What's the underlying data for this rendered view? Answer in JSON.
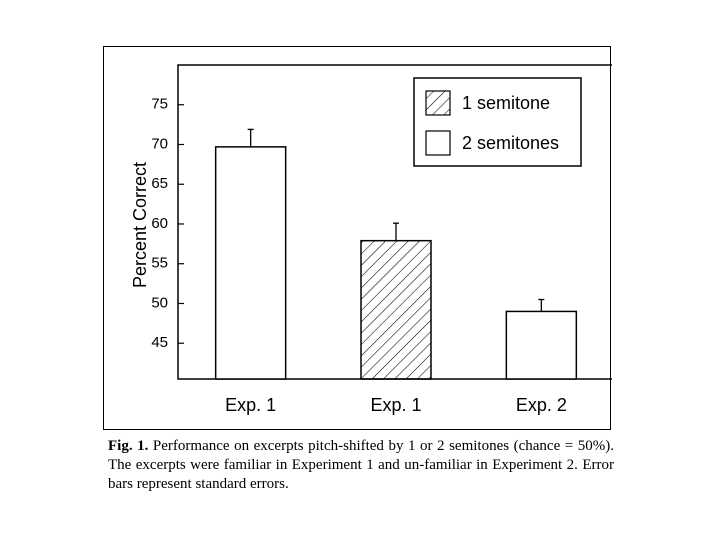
{
  "chart_data": {
    "type": "bar",
    "title": "",
    "xlabel": "",
    "ylabel": "Percent Correct",
    "ylim": [
      40.5,
      80
    ],
    "yticks": [
      45,
      50,
      55,
      60,
      65,
      70,
      75
    ],
    "grid": false,
    "legend_position": "top-right",
    "categories": [
      "Exp. 1",
      "Exp. 1",
      "Exp. 2"
    ],
    "bars": [
      {
        "category": "Exp. 1",
        "series": "2 semitones",
        "value": 69.7,
        "error": 2.2
      },
      {
        "category": "Exp. 1",
        "series": "1 semitone",
        "value": 57.9,
        "error": 2.2
      },
      {
        "category": "Exp. 2",
        "series": "2 semitones",
        "value": 49.0,
        "error": 1.5
      }
    ],
    "legend": [
      {
        "label": "1 semitone",
        "pattern": "hatched"
      },
      {
        "label": "2 semitones",
        "pattern": "open"
      }
    ]
  },
  "caption": {
    "label": "Fig. 1.",
    "text": "Performance on excerpts pitch-shifted by 1 or 2 semitones (chance = 50%). The excerpts were familiar in Experiment 1 and un-familiar in Experiment 2. Error bars represent standard errors."
  }
}
